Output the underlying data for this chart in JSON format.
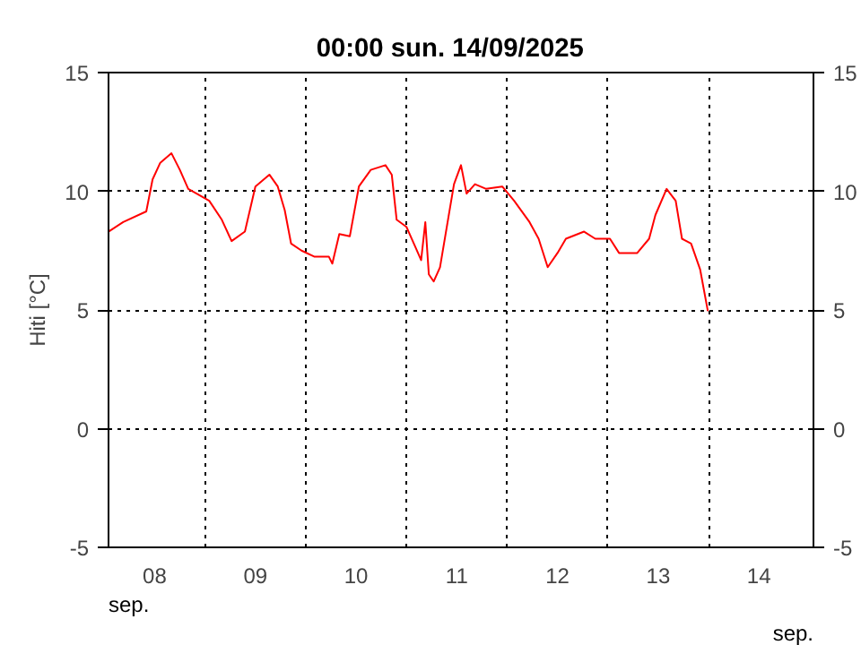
{
  "chart_data": {
    "type": "line",
    "title": "00:00   sun.  14/09/2025",
    "ylabel": "Hiti [°C]",
    "y2label": null,
    "x": [
      "2025-09-08T01:00",
      "2025-09-08T04:30",
      "2025-09-08T10:00",
      "2025-09-08T11:30",
      "2025-09-08T13:20",
      "2025-09-08T16:00",
      "2025-09-08T18:00",
      "2025-09-08T20:00",
      "2025-09-08T22:00",
      "2025-09-09T01:00",
      "2025-09-09T04:00",
      "2025-09-09T06:20",
      "2025-09-09T09:30",
      "2025-09-09T12:00",
      "2025-09-09T15:20",
      "2025-09-09T17:20",
      "2025-09-09T19:00",
      "2025-09-09T20:30",
      "2025-09-09T23:00",
      "2025-09-10T02:00",
      "2025-09-10T05:30",
      "2025-09-10T06:20",
      "2025-09-10T08:00",
      "2025-09-10T10:30",
      "2025-09-10T12:40",
      "2025-09-10T15:30",
      "2025-09-10T19:00",
      "2025-09-10T20:30",
      "2025-09-10T21:40",
      "2025-09-11T00:00",
      "2025-09-11T02:00",
      "2025-09-11T03:30",
      "2025-09-11T04:30",
      "2025-09-11T05:20",
      "2025-09-11T06:30",
      "2025-09-11T08:00",
      "2025-09-11T10:00",
      "2025-09-11T11:20",
      "2025-09-11T13:00",
      "2025-09-11T14:20",
      "2025-09-11T16:20",
      "2025-09-11T19:00",
      "2025-09-11T22:50",
      "2025-09-12T01:40",
      "2025-09-12T05:20",
      "2025-09-12T07:30",
      "2025-09-12T09:40",
      "2025-09-12T12:00",
      "2025-09-12T14:00",
      "2025-09-12T18:20",
      "2025-09-12T21:00",
      "2025-09-13T00:30",
      "2025-09-13T02:40",
      "2025-09-13T07:00",
      "2025-09-13T09:50",
      "2025-09-13T11:20",
      "2025-09-13T14:00",
      "2025-09-13T16:10",
      "2025-09-13T17:40",
      "2025-09-13T19:50",
      "2025-09-13T22:00",
      "2025-09-13T23:50"
    ],
    "series": [
      {
        "color": "#ff0000",
        "values": [
          8.3,
          8.7,
          9.15,
          10.5,
          11.2,
          11.6,
          10.9,
          10.1,
          9.9,
          9.6,
          8.8,
          7.9,
          8.3,
          10.2,
          10.7,
          10.2,
          9.2,
          7.8,
          7.5,
          7.25,
          7.25,
          6.95,
          8.2,
          8.1,
          10.2,
          10.9,
          11.1,
          10.7,
          8.8,
          8.5,
          7.7,
          7.1,
          8.7,
          6.5,
          6.2,
          6.8,
          8.9,
          10.3,
          11.1,
          9.9,
          10.3,
          10.1,
          10.2,
          9.6,
          8.7,
          8.0,
          6.8,
          7.4,
          8.0,
          8.3,
          8.0,
          8.0,
          7.4,
          7.4,
          8.0,
          9.0,
          10.1,
          9.6,
          8.0,
          7.8,
          6.7,
          4.95
        ]
      }
    ],
    "xlim": [
      "2025-09-08T01:00",
      "2025-09-15T01:00"
    ],
    "xticks": [
      {
        "value": "2025-09-08T12:00",
        "label": "08"
      },
      {
        "value": "2025-09-09T00:00",
        "label": null
      },
      {
        "value": "2025-09-09T12:00",
        "label": "09"
      },
      {
        "value": "2025-09-10T00:00",
        "label": null
      },
      {
        "value": "2025-09-10T12:00",
        "label": "10"
      },
      {
        "value": "2025-09-11T00:00",
        "label": null
      },
      {
        "value": "2025-09-11T12:00",
        "label": "11"
      },
      {
        "value": "2025-09-12T00:00",
        "label": null
      },
      {
        "value": "2025-09-12T12:00",
        "label": "12"
      },
      {
        "value": "2025-09-13T00:00",
        "label": null
      },
      {
        "value": "2025-09-13T12:00",
        "label": "13"
      },
      {
        "value": "2025-09-14T00:00",
        "label": null
      },
      {
        "value": "2025-09-14T12:00",
        "label": "14"
      }
    ],
    "ylim": [
      -5,
      15
    ],
    "yticks": [
      -5,
      0,
      5,
      10,
      15
    ],
    "y2lim": [
      -5,
      15
    ],
    "y2ticks": [
      -5,
      0,
      5,
      10,
      15
    ],
    "grid": true,
    "line_style": "solid",
    "annotations": [
      "sep.",
      "sep."
    ]
  }
}
